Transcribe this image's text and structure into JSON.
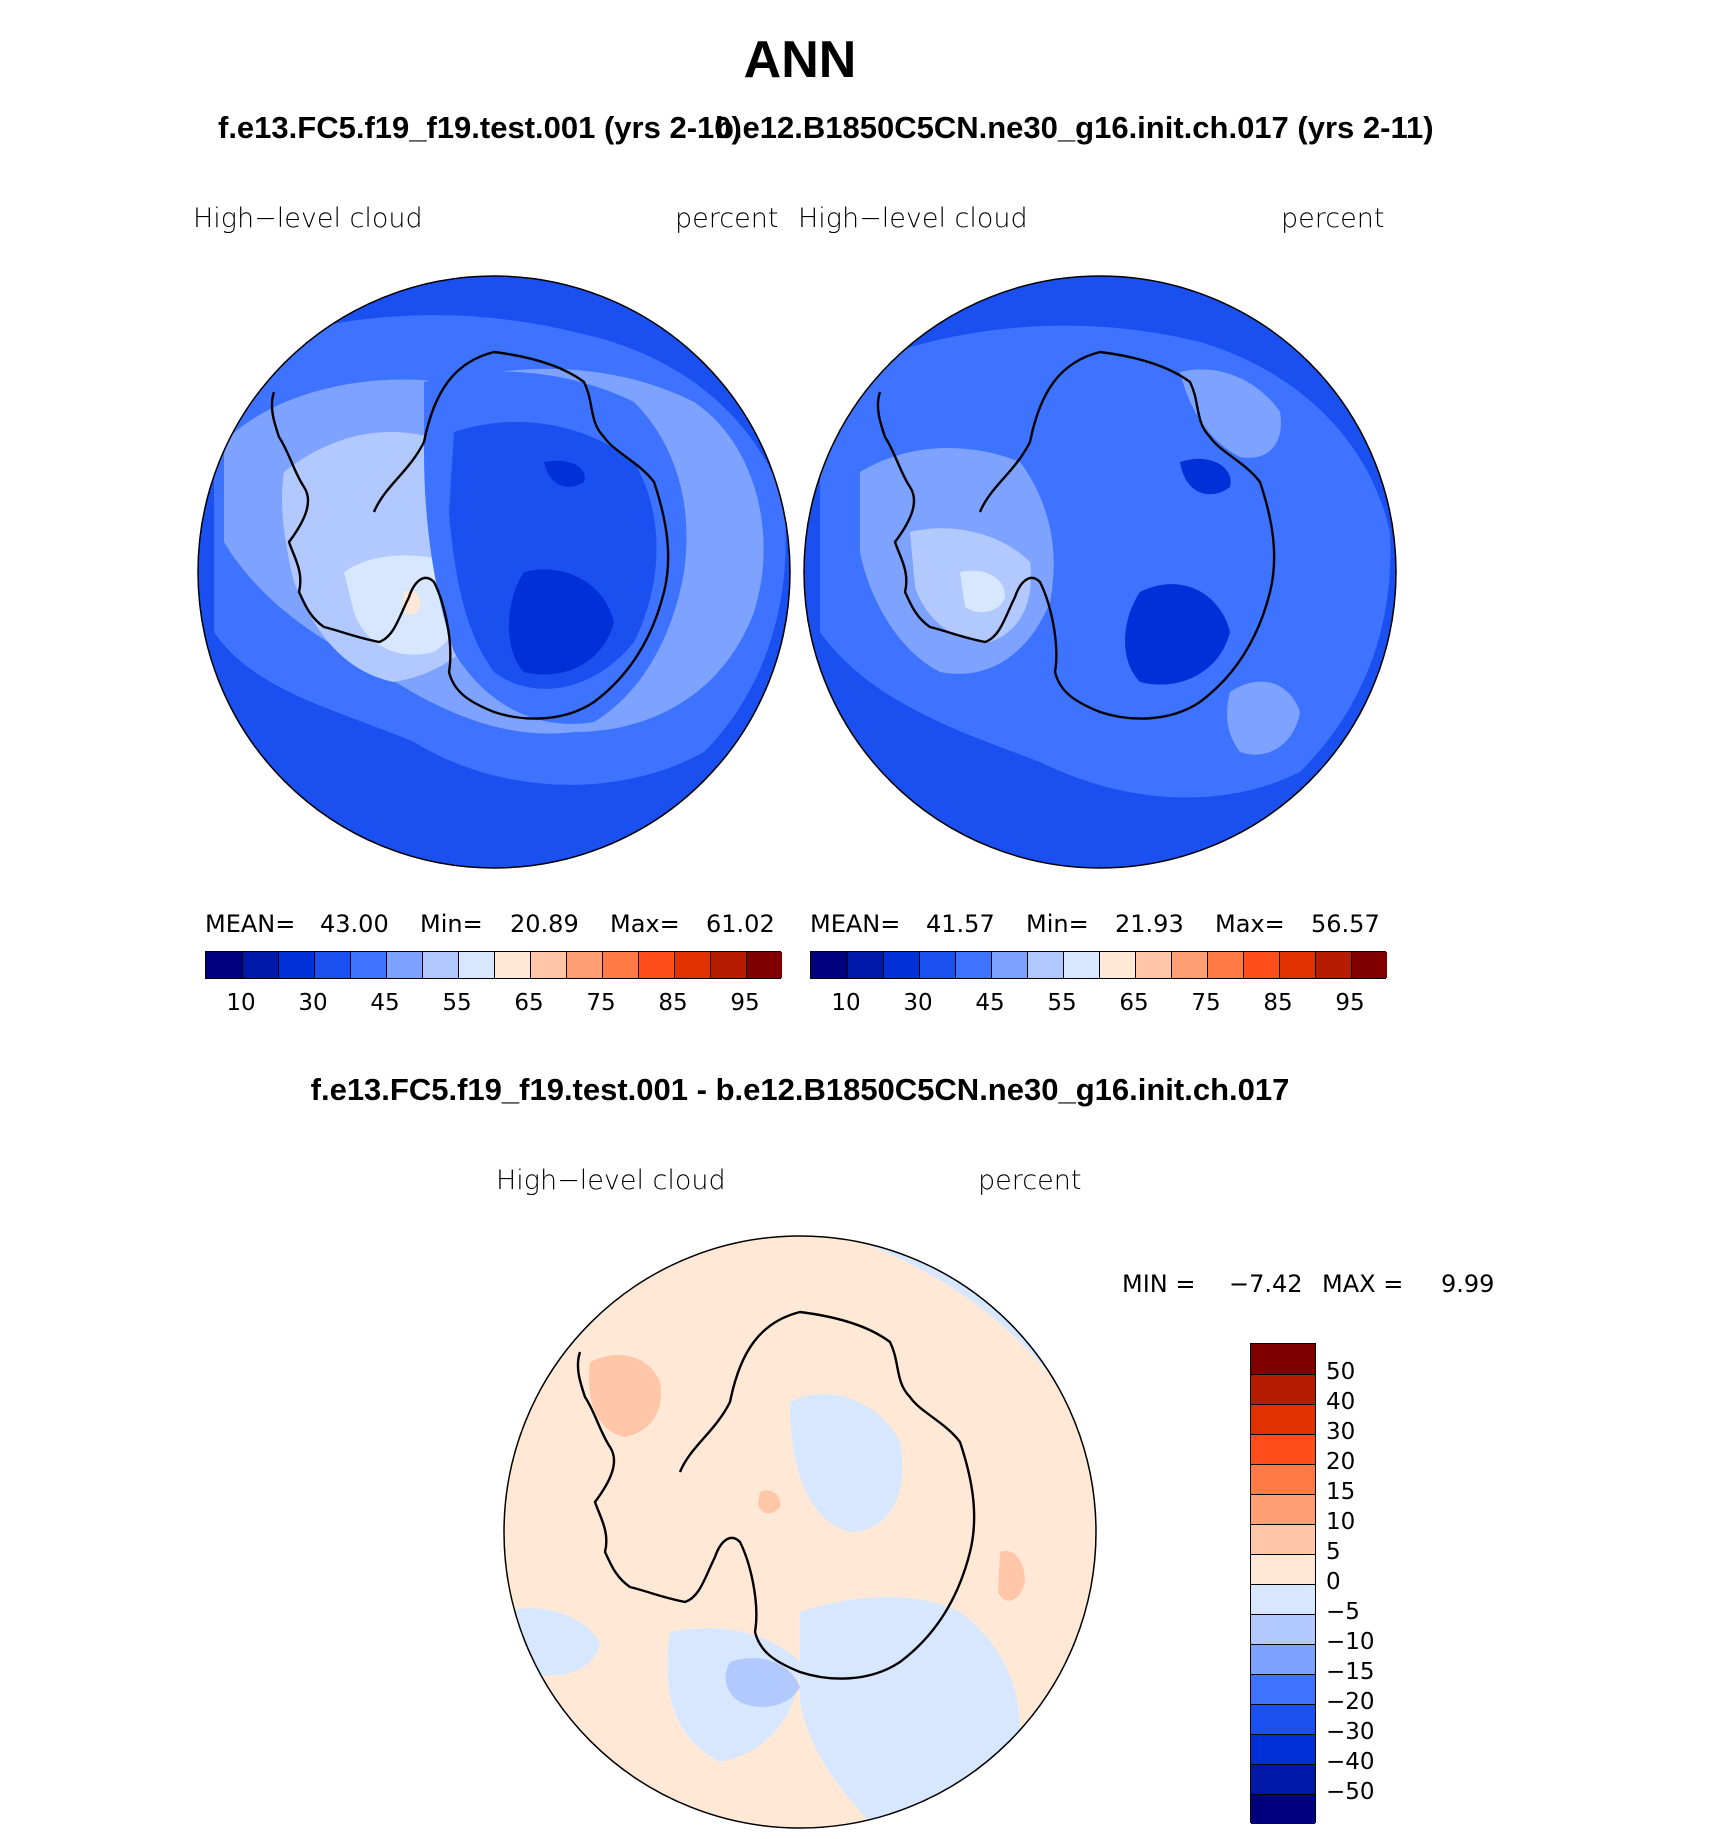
{
  "page": {
    "title": "ANN",
    "case_a": "f.e13.FC5.f19_f19.test.001 (yrs 2-10)",
    "case_b": "b.e12.B1850C5CN.ne30_g16.init.ch.017 (yrs 2-11)",
    "diff_title": "f.e13.FC5.f19_f19.test.001 - b.e12.B1850C5CN.ne30_g16.init.ch.017"
  },
  "panels": [
    {
      "variable": "High−level  cloud",
      "units": "percent",
      "mean_label": "MEAN=",
      "mean_value": "43.00",
      "min_label": "Min=",
      "min_value": "20.89",
      "max_label": "Max=",
      "max_value": "61.02"
    },
    {
      "variable": "High−level  cloud",
      "units": "percent",
      "mean_label": "MEAN=",
      "mean_value": "41.57",
      "min_label": "Min=",
      "min_value": "21.93",
      "max_label": "Max=",
      "max_value": "56.57"
    }
  ],
  "diff_panel": {
    "variable": "High−level  cloud",
    "units": "percent",
    "min_label": "MIN =",
    "min_value": "−7.42",
    "max_label": "MAX =",
    "max_value": "9.99"
  },
  "colorbar_abs": {
    "colors": [
      "#00007f",
      "#0018a8",
      "#0030d8",
      "#1a4ff0",
      "#3d73ff",
      "#7ea3ff",
      "#b1c9ff",
      "#d7e7ff",
      "#ffe8d6",
      "#ffc6a8",
      "#ff9f74",
      "#ff7a45",
      "#ff4e1a",
      "#e03200",
      "#b51c00",
      "#800000"
    ],
    "tick_labels": [
      "10",
      "30",
      "45",
      "55",
      "65",
      "75",
      "85",
      "95"
    ]
  },
  "colorbar_diff": {
    "colors": [
      "#800000",
      "#b51c00",
      "#e03200",
      "#ff4e1a",
      "#ff7a45",
      "#ff9f74",
      "#ffc6a8",
      "#ffe8d6",
      "#d7e7ff",
      "#b1c9ff",
      "#7ea3ff",
      "#3d73ff",
      "#1a4ff0",
      "#0030d8",
      "#0018a8",
      "#00007f"
    ],
    "tick_labels": [
      "50",
      "40",
      "30",
      "20",
      "15",
      "10",
      "5",
      "0",
      "−5",
      "−10",
      "−15",
      "−20",
      "−30",
      "−40",
      "−50"
    ]
  },
  "map_colors": {
    "deep": "#1a4ff0",
    "mid": "#3d73ff",
    "light": "#7ea3ff",
    "pale": "#b1c9ff",
    "verypale": "#d7e7ff",
    "peach": "#ffe8d6",
    "salmon": "#ffc6a8",
    "darkblue": "#0030d8"
  }
}
